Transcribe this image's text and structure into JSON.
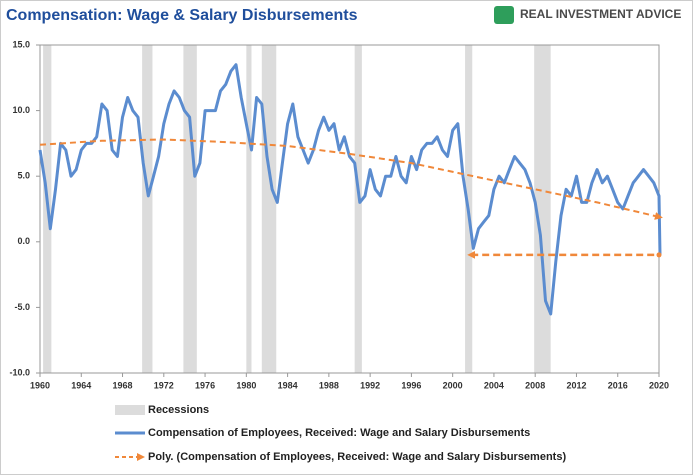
{
  "chart_data": {
    "type": "line",
    "title": "Compensation: Wage & Salary Disbursements",
    "logo": "REAL INVESTMENT ADVICE",
    "xlim": [
      1960,
      2020
    ],
    "xticks": [
      1960,
      1964,
      1968,
      1972,
      1976,
      1980,
      1984,
      1988,
      1992,
      1996,
      2000,
      2004,
      2008,
      2012,
      2016,
      2020
    ],
    "ylim": [
      -10,
      15
    ],
    "yticks": [
      {
        "value": 15,
        "label": "15.0"
      },
      {
        "value": 10,
        "label": "10.0"
      },
      {
        "value": 5,
        "label": "5.0"
      },
      {
        "value": 0,
        "label": "0.0"
      },
      {
        "value": -5,
        "label": "-5.0"
      },
      {
        "value": -10,
        "label": "-10.0"
      }
    ],
    "grid": false,
    "recessions": {
      "name": "Recessions",
      "color": "#dcdcdc",
      "periods": [
        [
          1960.3,
          1961.1
        ],
        [
          1969.9,
          1970.9
        ],
        [
          1973.9,
          1975.2
        ],
        [
          1980.0,
          1980.5
        ],
        [
          1981.5,
          1982.9
        ],
        [
          1990.5,
          1991.2
        ],
        [
          2001.2,
          2001.9
        ],
        [
          2007.9,
          2009.5
        ]
      ]
    },
    "series": [
      {
        "name": "Compensation of Employees, Received: Wage and Salary Disbursements",
        "color": "#5b8ccf",
        "style": "solid",
        "x": [
          1960,
          1960.5,
          1961,
          1961.5,
          1962,
          1962.5,
          1963,
          1963.5,
          1964,
          1964.5,
          1965,
          1965.5,
          1966,
          1966.5,
          1967,
          1967.5,
          1968,
          1968.5,
          1969,
          1969.5,
          1970,
          1970.5,
          1971,
          1971.5,
          1972,
          1972.5,
          1973,
          1973.5,
          1974,
          1974.5,
          1975,
          1975.5,
          1976,
          1976.5,
          1977,
          1977.5,
          1978,
          1978.5,
          1979,
          1979.5,
          1980,
          1980.5,
          1981,
          1981.5,
          1982,
          1982.5,
          1983,
          1983.5,
          1984,
          1984.5,
          1985,
          1985.5,
          1986,
          1986.5,
          1987,
          1987.5,
          1988,
          1988.5,
          1989,
          1989.5,
          1990,
          1990.5,
          1991,
          1991.5,
          1992,
          1992.5,
          1993,
          1993.5,
          1994,
          1994.5,
          1995,
          1995.5,
          1996,
          1996.5,
          1997,
          1997.5,
          1998,
          1998.5,
          1999,
          1999.5,
          2000,
          2000.5,
          2001,
          2001.5,
          2002,
          2002.5,
          2003,
          2003.5,
          2004,
          2004.5,
          2005,
          2005.5,
          2006,
          2006.5,
          2007,
          2007.5,
          2008,
          2008.5,
          2009,
          2009.5,
          2010,
          2010.5,
          2011,
          2011.5,
          2012,
          2012.5,
          2013,
          2013.5,
          2014,
          2014.5,
          2015,
          2015.5,
          2016,
          2016.5,
          2017,
          2017.5,
          2018,
          2018.5,
          2019,
          2019.5,
          2020,
          2020.1
        ],
        "values": [
          7.0,
          4.5,
          1.0,
          4.0,
          7.5,
          7.0,
          5.0,
          5.5,
          7.0,
          7.5,
          7.5,
          8.0,
          10.5,
          10.0,
          7.0,
          6.5,
          9.5,
          11.0,
          10.0,
          9.5,
          6.0,
          3.5,
          5.0,
          6.5,
          9.0,
          10.5,
          11.5,
          11.0,
          10.0,
          9.5,
          5.0,
          6.0,
          10.0,
          10.0,
          10.0,
          11.5,
          12.0,
          13.0,
          13.5,
          11.0,
          9.0,
          7.0,
          11.0,
          10.5,
          6.5,
          4.0,
          3.0,
          6.0,
          9.0,
          10.5,
          8.0,
          7.0,
          6.0,
          7.0,
          8.5,
          9.5,
          8.5,
          9.0,
          7.0,
          8.0,
          6.5,
          6.0,
          3.0,
          3.5,
          5.5,
          4.0,
          3.5,
          5.0,
          5.0,
          6.5,
          5.0,
          4.5,
          6.5,
          5.5,
          7.0,
          7.5,
          7.5,
          8.0,
          7.0,
          6.5,
          8.5,
          9.0,
          5.0,
          2.5,
          -0.5,
          1.0,
          1.5,
          2.0,
          4.0,
          5.0,
          4.5,
          5.5,
          6.5,
          6.0,
          5.5,
          4.5,
          3.0,
          0.5,
          -4.5,
          -5.5,
          -1.5,
          2.0,
          4.0,
          3.5,
          5.0,
          3.0,
          3.0,
          4.5,
          5.5,
          4.5,
          5.0,
          4.0,
          3.0,
          2.5,
          3.5,
          4.5,
          5.0,
          5.5,
          5.0,
          4.5,
          3.5,
          -1.0
        ]
      },
      {
        "name": "Poly. (Compensation of Employees, Received: Wage and Salary Disbursements)",
        "color": "#f0883a",
        "style": "dashed",
        "x": [
          1960,
          1966,
          1972,
          1978,
          1984,
          1990,
          1996,
          2002,
          2008,
          2014,
          2020
        ],
        "values": [
          7.4,
          7.7,
          7.8,
          7.6,
          7.3,
          6.7,
          6.0,
          5.0,
          4.0,
          3.0,
          1.9
        ]
      }
    ],
    "annotation_line": {
      "color": "#f0883a",
      "x": [
        2001.8,
        2020
      ],
      "values": [
        -1.0,
        -1.0
      ]
    }
  }
}
